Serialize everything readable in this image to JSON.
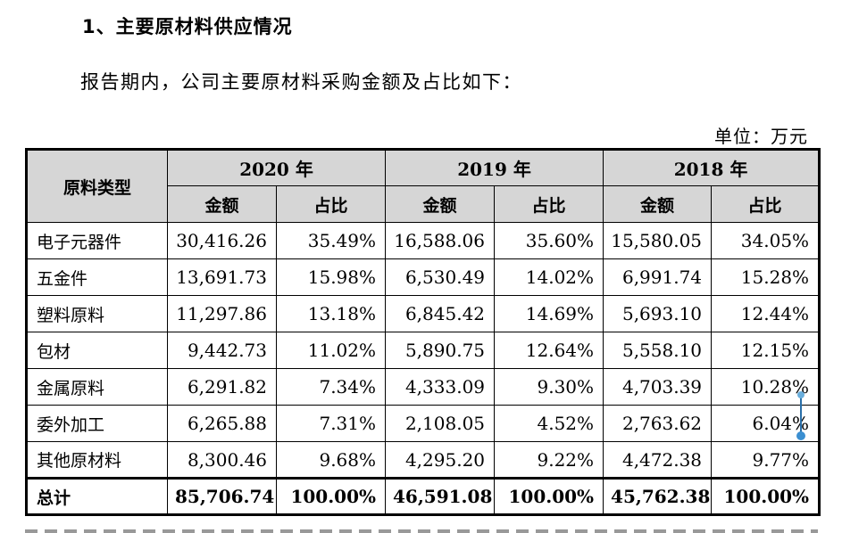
{
  "heading": "1、主要原材料供应情况",
  "intro": "报告期内，公司主要原材料采购金额及占比如下：",
  "unit": "单位：万元",
  "table": {
    "type_header": "原料类型",
    "years": [
      "2020 年",
      "2019 年",
      "2018 年"
    ],
    "amount_label": "金额",
    "ratio_label": "占比",
    "rows": [
      {
        "name": "电子元器件",
        "cells": [
          "30,416.26",
          "35.49%",
          "16,588.06",
          "35.60%",
          "15,580.05",
          "34.05%"
        ]
      },
      {
        "name": "五金件",
        "cells": [
          "13,691.73",
          "15.98%",
          "6,530.49",
          "14.02%",
          "6,991.74",
          "15.28%"
        ]
      },
      {
        "name": "塑料原料",
        "cells": [
          "11,297.86",
          "13.18%",
          "6,845.42",
          "14.69%",
          "5,693.10",
          "12.44%"
        ]
      },
      {
        "name": "包材",
        "cells": [
          "9,442.73",
          "11.02%",
          "5,890.75",
          "12.64%",
          "5,558.10",
          "12.15%"
        ]
      },
      {
        "name": "金属原料",
        "cells": [
          "6,291.82",
          "7.34%",
          "4,333.09",
          "9.30%",
          "4,703.39",
          "10.28%"
        ]
      },
      {
        "name": "委外加工",
        "cells": [
          "6,265.88",
          "7.31%",
          "2,108.05",
          "4.52%",
          "2,763.62",
          "6.04%"
        ]
      },
      {
        "name": "其他原材料",
        "cells": [
          "8,300.46",
          "9.68%",
          "4,295.20",
          "9.22%",
          "4,472.38",
          "9.77%"
        ]
      }
    ],
    "total": {
      "name": "总计",
      "cells": [
        "85,706.74",
        "100.00%",
        "46,591.08",
        "100.00%",
        "45,762.38",
        "100.00%"
      ]
    }
  }
}
